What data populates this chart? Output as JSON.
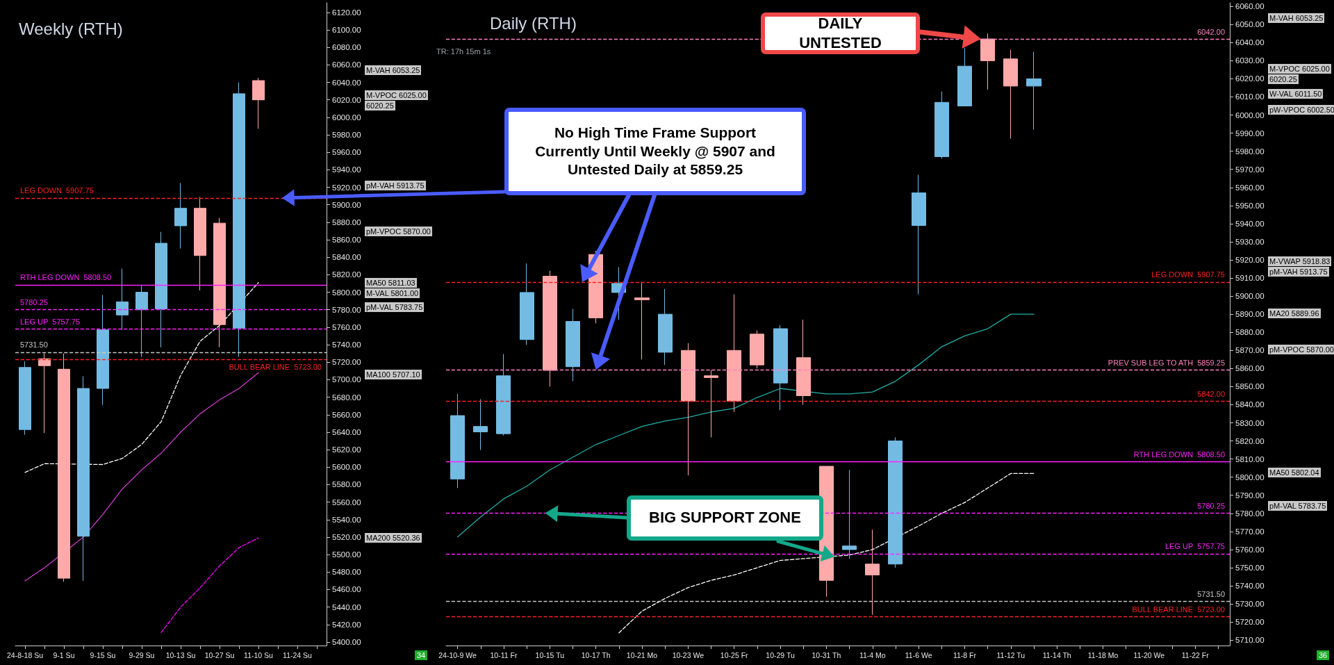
{
  "chart_data": [
    {
      "type": "candlestick",
      "title": "Weekly (RTH)",
      "categories": [
        "24-8-18 Su",
        null,
        "9-1 Su",
        null,
        "9-15 Su",
        null,
        "9-29 Su",
        null,
        "10-13 Su",
        null,
        "10-27 Su",
        null,
        "11-10 Su",
        null,
        "11-24 Su",
        null
      ],
      "series": [
        {
          "ohlc": [
            [
              5643,
              5721,
              5637,
              5714
            ],
            [
              5724,
              5730,
              5639,
              5716
            ],
            [
              5712,
              5730,
              5469,
              5473
            ],
            [
              5521,
              5704,
              5470,
              5690
            ],
            [
              5690,
              5797,
              5671,
              5757
            ],
            [
              5774,
              5827,
              5757,
              5789
            ],
            [
              5780,
              5808,
              5726,
              5800
            ],
            [
              5781,
              5869,
              5737,
              5856
            ],
            [
              5876,
              5925,
              5850,
              5896
            ],
            [
              5896,
              5909,
              5802,
              5842
            ],
            [
              5879,
              5885,
              5737,
              5763
            ],
            [
              5759,
              6040,
              5726,
              6027
            ],
            [
              6042,
              6045,
              5987,
              6020
            ],
            null,
            null,
            null
          ],
          "colors": [
            "#74bbe3",
            "#ffaaaa",
            "#ffaaaa",
            "#74bbe3",
            "#74bbe3",
            "#74bbe3",
            "#74bbe3",
            "#74bbe3",
            "#74bbe3",
            "#ffaaaa",
            "#ffaaaa",
            "#74bbe3",
            "#ffaaaa",
            null,
            null,
            null
          ]
        },
        {
          "type": "line",
          "color": "#ffffff",
          "line_style": "dashed",
          "values": [
            5594,
            5604,
            null,
            null,
            5603,
            5610,
            5626,
            5652,
            5705,
            5744,
            5762,
            null,
            5811,
            null,
            null,
            null
          ]
        },
        {
          "type": "line",
          "color": "#e040e0",
          "line_style": "dotted",
          "values": [
            5470,
            5485,
            null,
            5520,
            5546,
            5575,
            5597,
            5616,
            5640,
            5661,
            5677,
            5690,
            5708,
            null,
            null,
            null
          ]
        },
        {
          "type": "line",
          "color": "#ff00ff",
          "line_style": "dashed",
          "values": [
            null,
            null,
            null,
            null,
            null,
            null,
            null,
            5411,
            5440,
            5462,
            5487,
            5508,
            5519,
            null,
            null,
            null
          ]
        }
      ],
      "ylim": [
        5396,
        6131
      ],
      "yticks": [
        {
          "value": 5400,
          "label": "5400.00"
        },
        {
          "value": 5420,
          "label": "5420.00"
        },
        {
          "value": 5440,
          "label": "5440.00"
        },
        {
          "value": 5460,
          "label": "5460.00"
        },
        {
          "value": 5480,
          "label": "5480.00"
        },
        {
          "value": 5500,
          "label": "5500.00"
        },
        {
          "value": 5520,
          "label": "5520.00"
        },
        {
          "value": 5540,
          "label": "5540.00"
        },
        {
          "value": 5560,
          "label": "5560.00"
        },
        {
          "value": 5580,
          "label": "5580.00"
        },
        {
          "value": 5600,
          "label": "5600.00"
        },
        {
          "value": 5620,
          "label": "5620.00"
        },
        {
          "value": 5640,
          "label": "5640.00"
        },
        {
          "value": 5660,
          "label": "5660.00"
        },
        {
          "value": 5680,
          "label": "5680.00"
        },
        {
          "value": 5700,
          "label": "5700.00"
        },
        {
          "value": 5720,
          "label": "5720.00"
        },
        {
          "value": 5740,
          "label": "5740.00"
        },
        {
          "value": 5760,
          "label": "5760.00"
        },
        {
          "value": 5780,
          "label": "5780.00"
        },
        {
          "value": 5800,
          "label": "5800.00"
        },
        {
          "value": 5820,
          "label": "5820.00"
        },
        {
          "value": 5840,
          "label": "5840.00"
        },
        {
          "value": 5860,
          "label": "5860.00"
        },
        {
          "value": 5880,
          "label": "5880.00"
        },
        {
          "value": 5900,
          "label": "5900.00"
        },
        {
          "value": 5920,
          "label": "5920.00"
        },
        {
          "value": 5940,
          "label": "5940.00"
        },
        {
          "value": 5960,
          "label": "5960.00"
        },
        {
          "value": 5980,
          "label": "5980.00"
        },
        {
          "value": 6000,
          "label": "6000.00"
        },
        {
          "value": 6020,
          "label": "6020.00"
        },
        {
          "value": 6040,
          "label": "6040.00"
        },
        {
          "value": 6060,
          "label": "6060.00"
        },
        {
          "value": 6080,
          "label": "6080.00"
        },
        {
          "value": 6100,
          "label": "6100.00"
        },
        {
          "value": 6120,
          "label": "6120.00"
        }
      ],
      "ref_lines": [
        {
          "axis": "y",
          "value": 5907.75,
          "label": "LEG DOWN  5907.75",
          "color": "#ff2020",
          "line_style": "dashed"
        },
        {
          "axis": "y",
          "value": 5808.5,
          "label": "RTH LEG DOWN  5808.50",
          "color": "#ff20ff",
          "line_style": "solid"
        },
        {
          "axis": "y",
          "value": 5780.25,
          "label": "5780.25",
          "color": "#ff20ff",
          "line_style": "dashed"
        },
        {
          "axis": "y",
          "value": 5757.75,
          "label": "LEG UP  5757.75",
          "color": "#ff20ff",
          "line_style": "dashed"
        },
        {
          "axis": "y",
          "value": 5731.5,
          "label": "5731.50",
          "color": "#c8c8c8",
          "line_style": "dashed"
        },
        {
          "axis": "y",
          "value": 5723,
          "label": "BULL BEAR LINE  5723.00",
          "color": "#ff2020",
          "line_style": "dashed"
        }
      ],
      "annotations": [
        "M-VAH 6053.25",
        "M-VPOC 6025.00",
        "6020.25",
        "pM-VAH 5913.75",
        "pM-VPOC 5870.00",
        "MA50 5811.03",
        "M-VAL 5801.00",
        "pM-VAL 5783.75",
        "MA100 5707.10",
        "MA200 5520.36",
        "34"
      ],
      "grid": false
    },
    {
      "type": "candlestick",
      "title": "Daily (RTH)",
      "categories": [
        "24-10-9 We",
        null,
        "10-11 Fr",
        null,
        "10-15 Tu",
        null,
        "10-17 Th",
        null,
        "10-21 Mo",
        null,
        "10-23 We",
        null,
        "10-25 Fr",
        null,
        "10-29 Tu",
        null,
        "10-31 Th",
        null,
        "11-4 Mo",
        null,
        "11-6 We",
        null,
        "11-8 Fr",
        null,
        "11-12 Tu",
        null,
        "11-14 Th",
        null,
        "11-18 Mo",
        null,
        "11-20 We",
        null,
        "11-22 Fr",
        null
      ],
      "series": [
        {
          "ohlc": [
            [
              5799,
              5846,
              5794,
              5834
            ],
            [
              5825,
              5843,
              5815,
              5828
            ],
            [
              5824,
              5868,
              5823,
              5856
            ],
            [
              5876,
              5918,
              5873,
              5902
            ],
            [
              5911,
              5914,
              5850,
              5859
            ],
            [
              5861,
              5893,
              5853,
              5886
            ],
            [
              5923,
              5925,
              5885,
              5888
            ],
            [
              5902,
              5916,
              5887,
              5907
            ],
            [
              5899,
              5908,
              5865,
              5898
            ],
            [
              5869,
              5904,
              5862,
              5890
            ],
            [
              5870,
              5874,
              5801,
              5842
            ],
            [
              5856,
              5859,
              5822,
              5855
            ],
            [
              5870,
              5901,
              5836,
              5842
            ],
            [
              5879,
              5881,
              5860,
              5862
            ],
            [
              5852,
              5884,
              5837,
              5882
            ],
            [
              5866,
              5887,
              5840,
              5845
            ],
            [
              5806,
              5806,
              5734,
              5743
            ],
            [
              5760,
              5804,
              5755,
              5762
            ],
            [
              5752,
              5771,
              5724,
              5746
            ],
            [
              5752,
              5822,
              5750,
              5820
            ],
            [
              5939,
              5967,
              5901,
              5957
            ],
            [
              5977,
              6013,
              5976,
              6007
            ],
            [
              6005,
              6037,
              6005,
              6027
            ],
            [
              6042,
              6045,
              6014,
              6030
            ],
            [
              6031,
              6036,
              5987,
              6016
            ],
            [
              6016,
              6035,
              5992,
              6020
            ],
            null,
            null,
            null,
            null,
            null,
            null,
            null,
            null
          ],
          "colors": [
            "#74bbe3",
            "#74bbe3",
            "#74bbe3",
            "#74bbe3",
            "#ffaaaa",
            "#74bbe3",
            "#ffaaaa",
            "#74bbe3",
            "#ffaaaa",
            "#74bbe3",
            "#ffaaaa",
            "#ffaaaa",
            "#ffaaaa",
            "#ffaaaa",
            "#74bbe3",
            "#ffaaaa",
            "#ffaaaa",
            "#74bbe3",
            "#ffaaaa",
            "#74bbe3",
            "#74bbe3",
            "#74bbe3",
            "#74bbe3",
            "#ffaaaa",
            "#ffaaaa",
            "#74bbe3",
            null,
            null,
            null,
            null,
            null,
            null,
            null,
            null
          ]
        },
        {
          "type": "line",
          "color": "#20b0a8",
          "line_style": "solid",
          "values": [
            5767,
            5778,
            5788,
            5795,
            5804,
            5811,
            5818,
            5823,
            5828,
            5831,
            5833,
            5836,
            5838,
            5844,
            5849,
            null,
            5846,
            5846,
            5847,
            5853,
            5862,
            5872,
            5878,
            5882,
            5890,
            5890,
            null,
            null,
            null,
            null,
            null,
            null,
            null,
            null
          ]
        },
        {
          "type": "line",
          "color": "#ffffff",
          "line_style": "dashed",
          "values": [
            null,
            null,
            null,
            null,
            null,
            null,
            null,
            5714,
            5726,
            5733,
            5739,
            5743,
            5746,
            5750,
            5754,
            5755,
            5756,
            5757,
            5760,
            null,
            5773,
            5780,
            5786,
            5794,
            5802,
            5802,
            null,
            null,
            null,
            null,
            null,
            null,
            null,
            null
          ]
        }
      ],
      "ylim": [
        5707,
        6062
      ],
      "yticks": [
        {
          "value": 5710,
          "label": "5710.00"
        },
        {
          "value": 5720,
          "label": "5720.00"
        },
        {
          "value": 5730,
          "label": "5730.00"
        },
        {
          "value": 5740,
          "label": "5740.00"
        },
        {
          "value": 5750,
          "label": "5750.00"
        },
        {
          "value": 5760,
          "label": "5760.00"
        },
        {
          "value": 5770,
          "label": "5770.00"
        },
        {
          "value": 5780,
          "label": "5780.00"
        },
        {
          "value": 5790,
          "label": "5790.00"
        },
        {
          "value": 5800,
          "label": "5800.00"
        },
        {
          "value": 5810,
          "label": "5810.00"
        },
        {
          "value": 5820,
          "label": "5820.00"
        },
        {
          "value": 5830,
          "label": "5830.00"
        },
        {
          "value": 5840,
          "label": "5840.00"
        },
        {
          "value": 5850,
          "label": "5850.00"
        },
        {
          "value": 5860,
          "label": "5860.00"
        },
        {
          "value": 5870,
          "label": "5870.00"
        },
        {
          "value": 5880,
          "label": "5880.00"
        },
        {
          "value": 5890,
          "label": "5890.00"
        },
        {
          "value": 5900,
          "label": "5900.00"
        },
        {
          "value": 5910,
          "label": "5910.00"
        },
        {
          "value": 5920,
          "label": "5920.00"
        },
        {
          "value": 5930,
          "label": "5930.00"
        },
        {
          "value": 5940,
          "label": "5940.00"
        },
        {
          "value": 5950,
          "label": "5950.00"
        },
        {
          "value": 5960,
          "label": "5960.00"
        },
        {
          "value": 5970,
          "label": "5970.00"
        },
        {
          "value": 5980,
          "label": "5980.00"
        },
        {
          "value": 5990,
          "label": "5990.00"
        },
        {
          "value": 6000,
          "label": "6000.00"
        },
        {
          "value": 6010,
          "label": "6010.00"
        },
        {
          "value": 6020,
          "label": "6020.00"
        },
        {
          "value": 6030,
          "label": "6030.00"
        },
        {
          "value": 6040,
          "label": "6040.00"
        },
        {
          "value": 6050,
          "label": "6050.00"
        },
        {
          "value": 6060,
          "label": "6060.00"
        }
      ],
      "ref_lines": [
        {
          "axis": "y",
          "value": 6042,
          "label": "6042.00",
          "color": "#ff80c0",
          "line_style": "dashed"
        },
        {
          "axis": "y",
          "value": 5907.75,
          "label": "LEG DOWN  5907.75",
          "color": "#ff2020",
          "line_style": "dashed"
        },
        {
          "axis": "y",
          "value": 5859.25,
          "label": "PREV SUB LEG TO ATH  5859.25",
          "color": "#ff80c0",
          "line_style": "dashed"
        },
        {
          "axis": "y",
          "value": 5842,
          "label": "5842.00",
          "color": "#ff2020",
          "line_style": "dashed"
        },
        {
          "axis": "y",
          "value": 5808.5,
          "label": "RTH LEG DOWN  5808.50",
          "color": "#ff20ff",
          "line_style": "solid"
        },
        {
          "axis": "y",
          "value": 5780.25,
          "label": "5780.25",
          "color": "#ff20ff",
          "line_style": "dashed"
        },
        {
          "axis": "y",
          "value": 5757.75,
          "label": "LEG UP  5757.75",
          "color": "#ff20ff",
          "line_style": "dashed"
        },
        {
          "axis": "y",
          "value": 5731.5,
          "label": "5731.50",
          "color": "#c8c8c8",
          "line_style": "dashed"
        },
        {
          "axis": "y",
          "value": 5723,
          "label": "BULL BEAR LINE  5723.00",
          "color": "#ff2020",
          "line_style": "dashed"
        }
      ],
      "annotations": [
        "M-VAH 6053.25",
        "M-VPOC 6025.00",
        "6020.25",
        "W-VAL 6011.50",
        "pW-VPOC 6002.50",
        "M-VWAP 5918.83",
        "pM-VAH 5913.75",
        "MA20 5889.96",
        "pM-VPOC 5870.00",
        "MA50 5802.04",
        "pM-VAL 5783.75",
        "TR: 17h 15m 1s",
        "36",
        "No High Time Frame Support Currently Until  Weekly @ 5907 and Untested Daily at 5859.25",
        {
          "text": "DAILY UNTESTED",
          "y": 6042
        },
        {
          "text": "BIG SUPPORT ZONE",
          "y": 5780.25
        }
      ],
      "grid": false
    }
  ]
}
